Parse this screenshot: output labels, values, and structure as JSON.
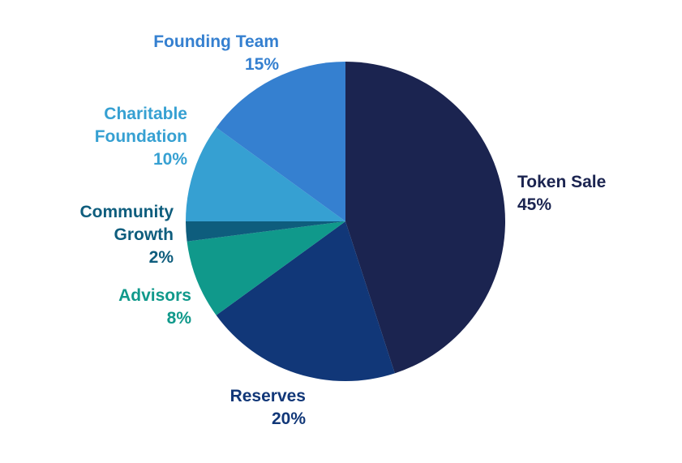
{
  "chart_data": {
    "type": "pie",
    "title": "",
    "slices": [
      {
        "label": "Token Sale",
        "value": 45,
        "value_label": "45%",
        "color": "#1b2450",
        "label_lines": [
          "Token Sale",
          "45%"
        ]
      },
      {
        "label": "Reserves",
        "value": 20,
        "value_label": "20%",
        "color": "#113778",
        "label_lines": [
          "Reserves",
          "20%"
        ]
      },
      {
        "label": "Advisors",
        "value": 8,
        "value_label": "8%",
        "color": "#10998b",
        "label_lines": [
          "Advisors",
          "8%"
        ]
      },
      {
        "label": "Community Growth",
        "value": 2,
        "value_label": "2%",
        "color": "#0e5d7d",
        "label_lines": [
          "Community",
          "Growth",
          "2%"
        ]
      },
      {
        "label": "Charitable Foundation",
        "value": 10,
        "value_label": "10%",
        "color": "#36a0d2",
        "label_lines": [
          "Charitable",
          "Foundation",
          "10%"
        ]
      },
      {
        "label": "Founding Team",
        "value": 15,
        "value_label": "15%",
        "color": "#3580d0",
        "label_lines": [
          "Founding Team",
          "15%"
        ]
      }
    ],
    "start": "top",
    "direction": "clockwise",
    "legend": "none"
  }
}
